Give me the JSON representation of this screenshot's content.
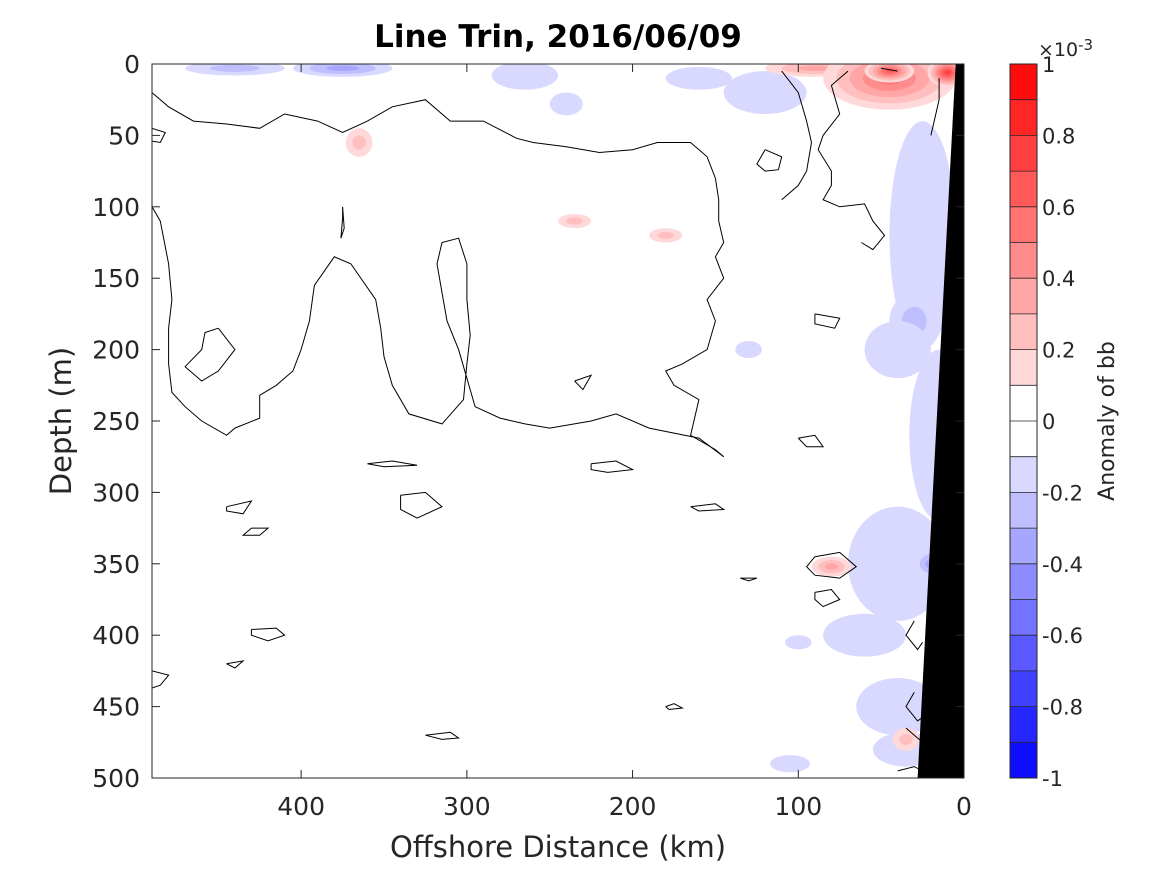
{
  "chart_data": {
    "type": "heatmap",
    "title": "Line Trin, 2016/06/09",
    "xlabel": "Offshore Distance (km)",
    "ylabel": "Depth (m)",
    "xlim": [
      490,
      0
    ],
    "ylim": [
      0,
      500
    ],
    "x_reversed": true,
    "y_reversed": true,
    "x_ticks": [
      400,
      300,
      200,
      100,
      0
    ],
    "x_tick_labels": [
      "400",
      "300",
      "200",
      "100",
      "0"
    ],
    "y_ticks": [
      0,
      50,
      100,
      150,
      200,
      250,
      300,
      350,
      400,
      450,
      500
    ],
    "y_tick_labels": [
      "0",
      "50",
      "100",
      "150",
      "200",
      "250",
      "300",
      "350",
      "400",
      "450",
      "500"
    ],
    "colorbar": {
      "label": "Anomaly of bb",
      "multiplier": "×10",
      "exponent": "-3",
      "limits": [
        -1,
        1
      ],
      "tick_values": [
        -1,
        -0.8,
        -0.6,
        -0.4,
        -0.2,
        0,
        0.2,
        0.4,
        0.6,
        0.8,
        1
      ],
      "tick_labels": [
        "-1",
        "-0.8",
        "-0.6",
        "-0.4",
        "-0.2",
        "0",
        "0.2",
        "0.4",
        "0.6",
        "0.8",
        "1"
      ],
      "levels": [
        -1,
        -0.9,
        -0.8,
        -0.7,
        -0.6,
        -0.5,
        -0.4,
        -0.3,
        -0.2,
        -0.1,
        0,
        0.1,
        0.2,
        0.3,
        0.4,
        0.5,
        0.6,
        0.7,
        0.8,
        0.9,
        1
      ]
    },
    "positive_anomalies": [
      {
        "x_km": 90,
        "depth_m": 3,
        "rx_km": 30,
        "ry_m": 6,
        "value": 0.3
      },
      {
        "x_km": 45,
        "depth_m": 10,
        "rx_km": 40,
        "ry_m": 22,
        "value": 0.5
      },
      {
        "x_km": 10,
        "depth_m": 6,
        "rx_km": 12,
        "ry_m": 10,
        "value": 0.7
      },
      {
        "x_km": 45,
        "depth_m": 5,
        "rx_km": 15,
        "ry_m": 8,
        "value": 0.6
      },
      {
        "x_km": 365,
        "depth_m": 55,
        "rx_km": 8,
        "ry_m": 10,
        "value": 0.2
      },
      {
        "x_km": 235,
        "depth_m": 110,
        "rx_km": 10,
        "ry_m": 5,
        "value": 0.2
      },
      {
        "x_km": 180,
        "depth_m": 120,
        "rx_km": 10,
        "ry_m": 5,
        "value": 0.2
      },
      {
        "x_km": 80,
        "depth_m": 352,
        "rx_km": 12,
        "ry_m": 7,
        "value": 0.3
      },
      {
        "x_km": 35,
        "depth_m": 473,
        "rx_km": 8,
        "ry_m": 8,
        "value": 0.2
      }
    ],
    "negative_anomalies": [
      {
        "x_km": 440,
        "depth_m": 3,
        "rx_km": 30,
        "ry_m": 5,
        "value": -0.2
      },
      {
        "x_km": 375,
        "depth_m": 3,
        "rx_km": 30,
        "ry_m": 6,
        "value": -0.3
      },
      {
        "x_km": 265,
        "depth_m": 8,
        "rx_km": 20,
        "ry_m": 10,
        "value": -0.1
      },
      {
        "x_km": 160,
        "depth_m": 10,
        "rx_km": 20,
        "ry_m": 8,
        "value": -0.1
      },
      {
        "x_km": 240,
        "depth_m": 28,
        "rx_km": 10,
        "ry_m": 8,
        "value": -0.1
      },
      {
        "x_km": 120,
        "depth_m": 20,
        "rx_km": 25,
        "ry_m": 15,
        "value": -0.1
      },
      {
        "x_km": 25,
        "depth_m": 120,
        "rx_km": 20,
        "ry_m": 80,
        "value": -0.1
      },
      {
        "x_km": 30,
        "depth_m": 180,
        "rx_km": 15,
        "ry_m": 20,
        "value": -0.2
      },
      {
        "x_km": 40,
        "depth_m": 200,
        "rx_km": 20,
        "ry_m": 20,
        "value": -0.1
      },
      {
        "x_km": 15,
        "depth_m": 260,
        "rx_km": 18,
        "ry_m": 60,
        "value": -0.1
      },
      {
        "x_km": 40,
        "depth_m": 350,
        "rx_km": 30,
        "ry_m": 40,
        "value": -0.1
      },
      {
        "x_km": 20,
        "depth_m": 350,
        "rx_km": 10,
        "ry_m": 10,
        "value": -0.3
      },
      {
        "x_km": 60,
        "depth_m": 400,
        "rx_km": 25,
        "ry_m": 15,
        "value": -0.1
      },
      {
        "x_km": 40,
        "depth_m": 450,
        "rx_km": 25,
        "ry_m": 20,
        "value": -0.1
      },
      {
        "x_km": 35,
        "depth_m": 480,
        "rx_km": 20,
        "ry_m": 12,
        "value": -0.1
      },
      {
        "x_km": 130,
        "depth_m": 200,
        "rx_km": 8,
        "ry_m": 6,
        "value": -0.1
      },
      {
        "x_km": 105,
        "depth_m": 490,
        "rx_km": 12,
        "ry_m": 6,
        "value": -0.1
      },
      {
        "x_km": 100,
        "depth_m": 405,
        "rx_km": 8,
        "ry_m": 5,
        "value": -0.1
      }
    ],
    "zero_contours": [
      [
        [
          490,
          20
        ],
        [
          480,
          30
        ],
        [
          465,
          40
        ],
        [
          445,
          42
        ],
        [
          425,
          45
        ],
        [
          410,
          35
        ],
        [
          390,
          40
        ],
        [
          375,
          48
        ],
        [
          360,
          40
        ],
        [
          345,
          30
        ],
        [
          325,
          25
        ],
        [
          310,
          40
        ],
        [
          290,
          40
        ],
        [
          270,
          52
        ],
        [
          260,
          55
        ],
        [
          240,
          58
        ],
        [
          220,
          62
        ],
        [
          200,
          60
        ],
        [
          185,
          55
        ],
        [
          165,
          55
        ],
        [
          155,
          65
        ],
        [
          150,
          80
        ],
        [
          148,
          95
        ],
        [
          148,
          110
        ],
        [
          145,
          125
        ],
        [
          150,
          135
        ],
        [
          145,
          150
        ],
        [
          155,
          165
        ],
        [
          150,
          180
        ],
        [
          155,
          200
        ],
        [
          170,
          210
        ],
        [
          180,
          215
        ],
        [
          175,
          225
        ],
        [
          160,
          235
        ],
        [
          165,
          260
        ],
        [
          150,
          270
        ],
        [
          145,
          275
        ]
      ],
      [
        [
          145,
          275
        ],
        [
          160,
          262
        ],
        [
          190,
          255
        ],
        [
          210,
          245
        ],
        [
          225,
          250
        ],
        [
          250,
          255
        ],
        [
          265,
          252
        ],
        [
          280,
          248
        ],
        [
          295,
          240
        ],
        [
          300,
          220
        ],
        [
          305,
          200
        ],
        [
          312,
          180
        ],
        [
          315,
          160
        ],
        [
          318,
          140
        ],
        [
          315,
          125
        ],
        [
          305,
          122
        ],
        [
          300,
          140
        ],
        [
          300,
          165
        ],
        [
          298,
          190
        ],
        [
          300,
          210
        ],
        [
          302,
          235
        ],
        [
          315,
          252
        ],
        [
          335,
          245
        ],
        [
          345,
          225
        ],
        [
          350,
          205
        ],
        [
          352,
          185
        ],
        [
          355,
          165
        ],
        [
          370,
          140
        ],
        [
          380,
          135
        ],
        [
          392,
          155
        ],
        [
          395,
          180
        ],
        [
          400,
          200
        ],
        [
          405,
          215
        ],
        [
          415,
          225
        ],
        [
          425,
          232
        ],
        [
          425,
          248
        ],
        [
          440,
          255
        ],
        [
          445,
          260
        ],
        [
          460,
          250
        ],
        [
          470,
          240
        ],
        [
          478,
          230
        ],
        [
          480,
          210
        ],
        [
          480,
          185
        ],
        [
          478,
          165
        ],
        [
          480,
          140
        ],
        [
          485,
          110
        ],
        [
          490,
          100
        ]
      ],
      [
        [
          375,
          100
        ],
        [
          374,
          115
        ],
        [
          376,
          122
        ],
        [
          375,
          108
        ],
        [
          375,
          100
        ]
      ],
      [
        [
          490,
          45
        ],
        [
          482,
          48
        ],
        [
          485,
          55
        ],
        [
          490,
          54
        ]
      ],
      [
        [
          450,
          185
        ],
        [
          440,
          200
        ],
        [
          450,
          215
        ],
        [
          460,
          222
        ],
        [
          470,
          212
        ],
        [
          460,
          200
        ],
        [
          458,
          188
        ],
        [
          450,
          185
        ]
      ],
      [
        [
          120,
          60
        ],
        [
          110,
          65
        ],
        [
          112,
          74
        ],
        [
          120,
          75
        ],
        [
          125,
          70
        ],
        [
          120,
          60
        ]
      ],
      [
        [
          90,
          175
        ],
        [
          75,
          178
        ],
        [
          78,
          185
        ],
        [
          90,
          182
        ],
        [
          90,
          175
        ]
      ],
      [
        [
          110,
          95
        ],
        [
          100,
          85
        ],
        [
          95,
          75
        ],
        [
          92,
          55
        ],
        [
          95,
          40
        ],
        [
          100,
          20
        ],
        [
          110,
          5
        ]
      ],
      [
        [
          70,
          5
        ],
        [
          80,
          15
        ],
        [
          75,
          35
        ],
        [
          85,
          50
        ],
        [
          88,
          60
        ],
        [
          80,
          75
        ],
        [
          80,
          85
        ],
        [
          85,
          95
        ],
        [
          75,
          100
        ],
        [
          60,
          98
        ],
        [
          55,
          110
        ],
        [
          48,
          120
        ],
        [
          55,
          130
        ],
        [
          62,
          125
        ]
      ],
      [
        [
          40,
          5
        ],
        [
          50,
          3
        ]
      ],
      [
        [
          15,
          10
        ],
        [
          15,
          25
        ],
        [
          18,
          40
        ],
        [
          20,
          50
        ]
      ],
      [
        [
          360,
          280
        ],
        [
          345,
          278
        ],
        [
          330,
          281
        ],
        [
          350,
          282
        ],
        [
          360,
          280
        ]
      ],
      [
        [
          445,
          310
        ],
        [
          430,
          306
        ],
        [
          435,
          315
        ],
        [
          445,
          313
        ],
        [
          445,
          310
        ]
      ],
      [
        [
          340,
          302
        ],
        [
          325,
          300
        ],
        [
          315,
          310
        ],
        [
          330,
          318
        ],
        [
          340,
          312
        ],
        [
          340,
          302
        ]
      ],
      [
        [
          225,
          280
        ],
        [
          210,
          278
        ],
        [
          200,
          284
        ],
        [
          215,
          286
        ],
        [
          225,
          284
        ],
        [
          225,
          280
        ]
      ],
      [
        [
          235,
          222
        ],
        [
          225,
          218
        ],
        [
          230,
          228
        ],
        [
          235,
          222
        ]
      ],
      [
        [
          165,
          310
        ],
        [
          150,
          308
        ],
        [
          145,
          312
        ],
        [
          160,
          313
        ],
        [
          165,
          310
        ]
      ],
      [
        [
          430,
          325
        ],
        [
          420,
          325
        ],
        [
          425,
          330
        ],
        [
          435,
          330
        ],
        [
          430,
          325
        ]
      ],
      [
        [
          135,
          360
        ],
        [
          125,
          360
        ],
        [
          130,
          362
        ],
        [
          135,
          360
        ]
      ],
      [
        [
          90,
          345
        ],
        [
          75,
          342
        ],
        [
          65,
          352
        ],
        [
          75,
          360
        ],
        [
          90,
          358
        ],
        [
          95,
          352
        ],
        [
          90,
          345
        ]
      ],
      [
        [
          90,
          370
        ],
        [
          80,
          368
        ],
        [
          75,
          375
        ],
        [
          85,
          380
        ],
        [
          90,
          375
        ],
        [
          90,
          370
        ]
      ],
      [
        [
          430,
          396
        ],
        [
          415,
          395
        ],
        [
          410,
          400
        ],
        [
          420,
          404
        ],
        [
          430,
          400
        ],
        [
          430,
          396
        ]
      ],
      [
        [
          445,
          420
        ],
        [
          435,
          418
        ],
        [
          440,
          423
        ],
        [
          445,
          420
        ]
      ],
      [
        [
          325,
          470
        ],
        [
          310,
          468
        ],
        [
          305,
          472
        ],
        [
          315,
          473
        ],
        [
          325,
          470
        ]
      ],
      [
        [
          180,
          450
        ],
        [
          175,
          448
        ],
        [
          170,
          451
        ],
        [
          178,
          452
        ],
        [
          180,
          450
        ]
      ],
      [
        [
          490,
          425
        ],
        [
          480,
          428
        ],
        [
          485,
          435
        ],
        [
          490,
          437
        ]
      ],
      [
        [
          100,
          262
        ],
        [
          90,
          260
        ],
        [
          85,
          268
        ],
        [
          95,
          268
        ],
        [
          100,
          262
        ]
      ],
      [
        [
          30,
          390
        ],
        [
          35,
          400
        ],
        [
          28,
          410
        ],
        [
          25,
          405
        ]
      ],
      [
        [
          30,
          440
        ],
        [
          35,
          450
        ],
        [
          28,
          460
        ],
        [
          22,
          455
        ]
      ],
      [
        [
          35,
          465
        ],
        [
          30,
          470
        ],
        [
          25,
          475
        ]
      ],
      [
        [
          40,
          495
        ],
        [
          30,
          492
        ],
        [
          22,
          497
        ]
      ]
    ],
    "bottom_topography": [
      [
        5,
        0
      ],
      [
        0,
        0
      ],
      [
        0,
        500
      ],
      [
        28,
        500
      ]
    ]
  }
}
